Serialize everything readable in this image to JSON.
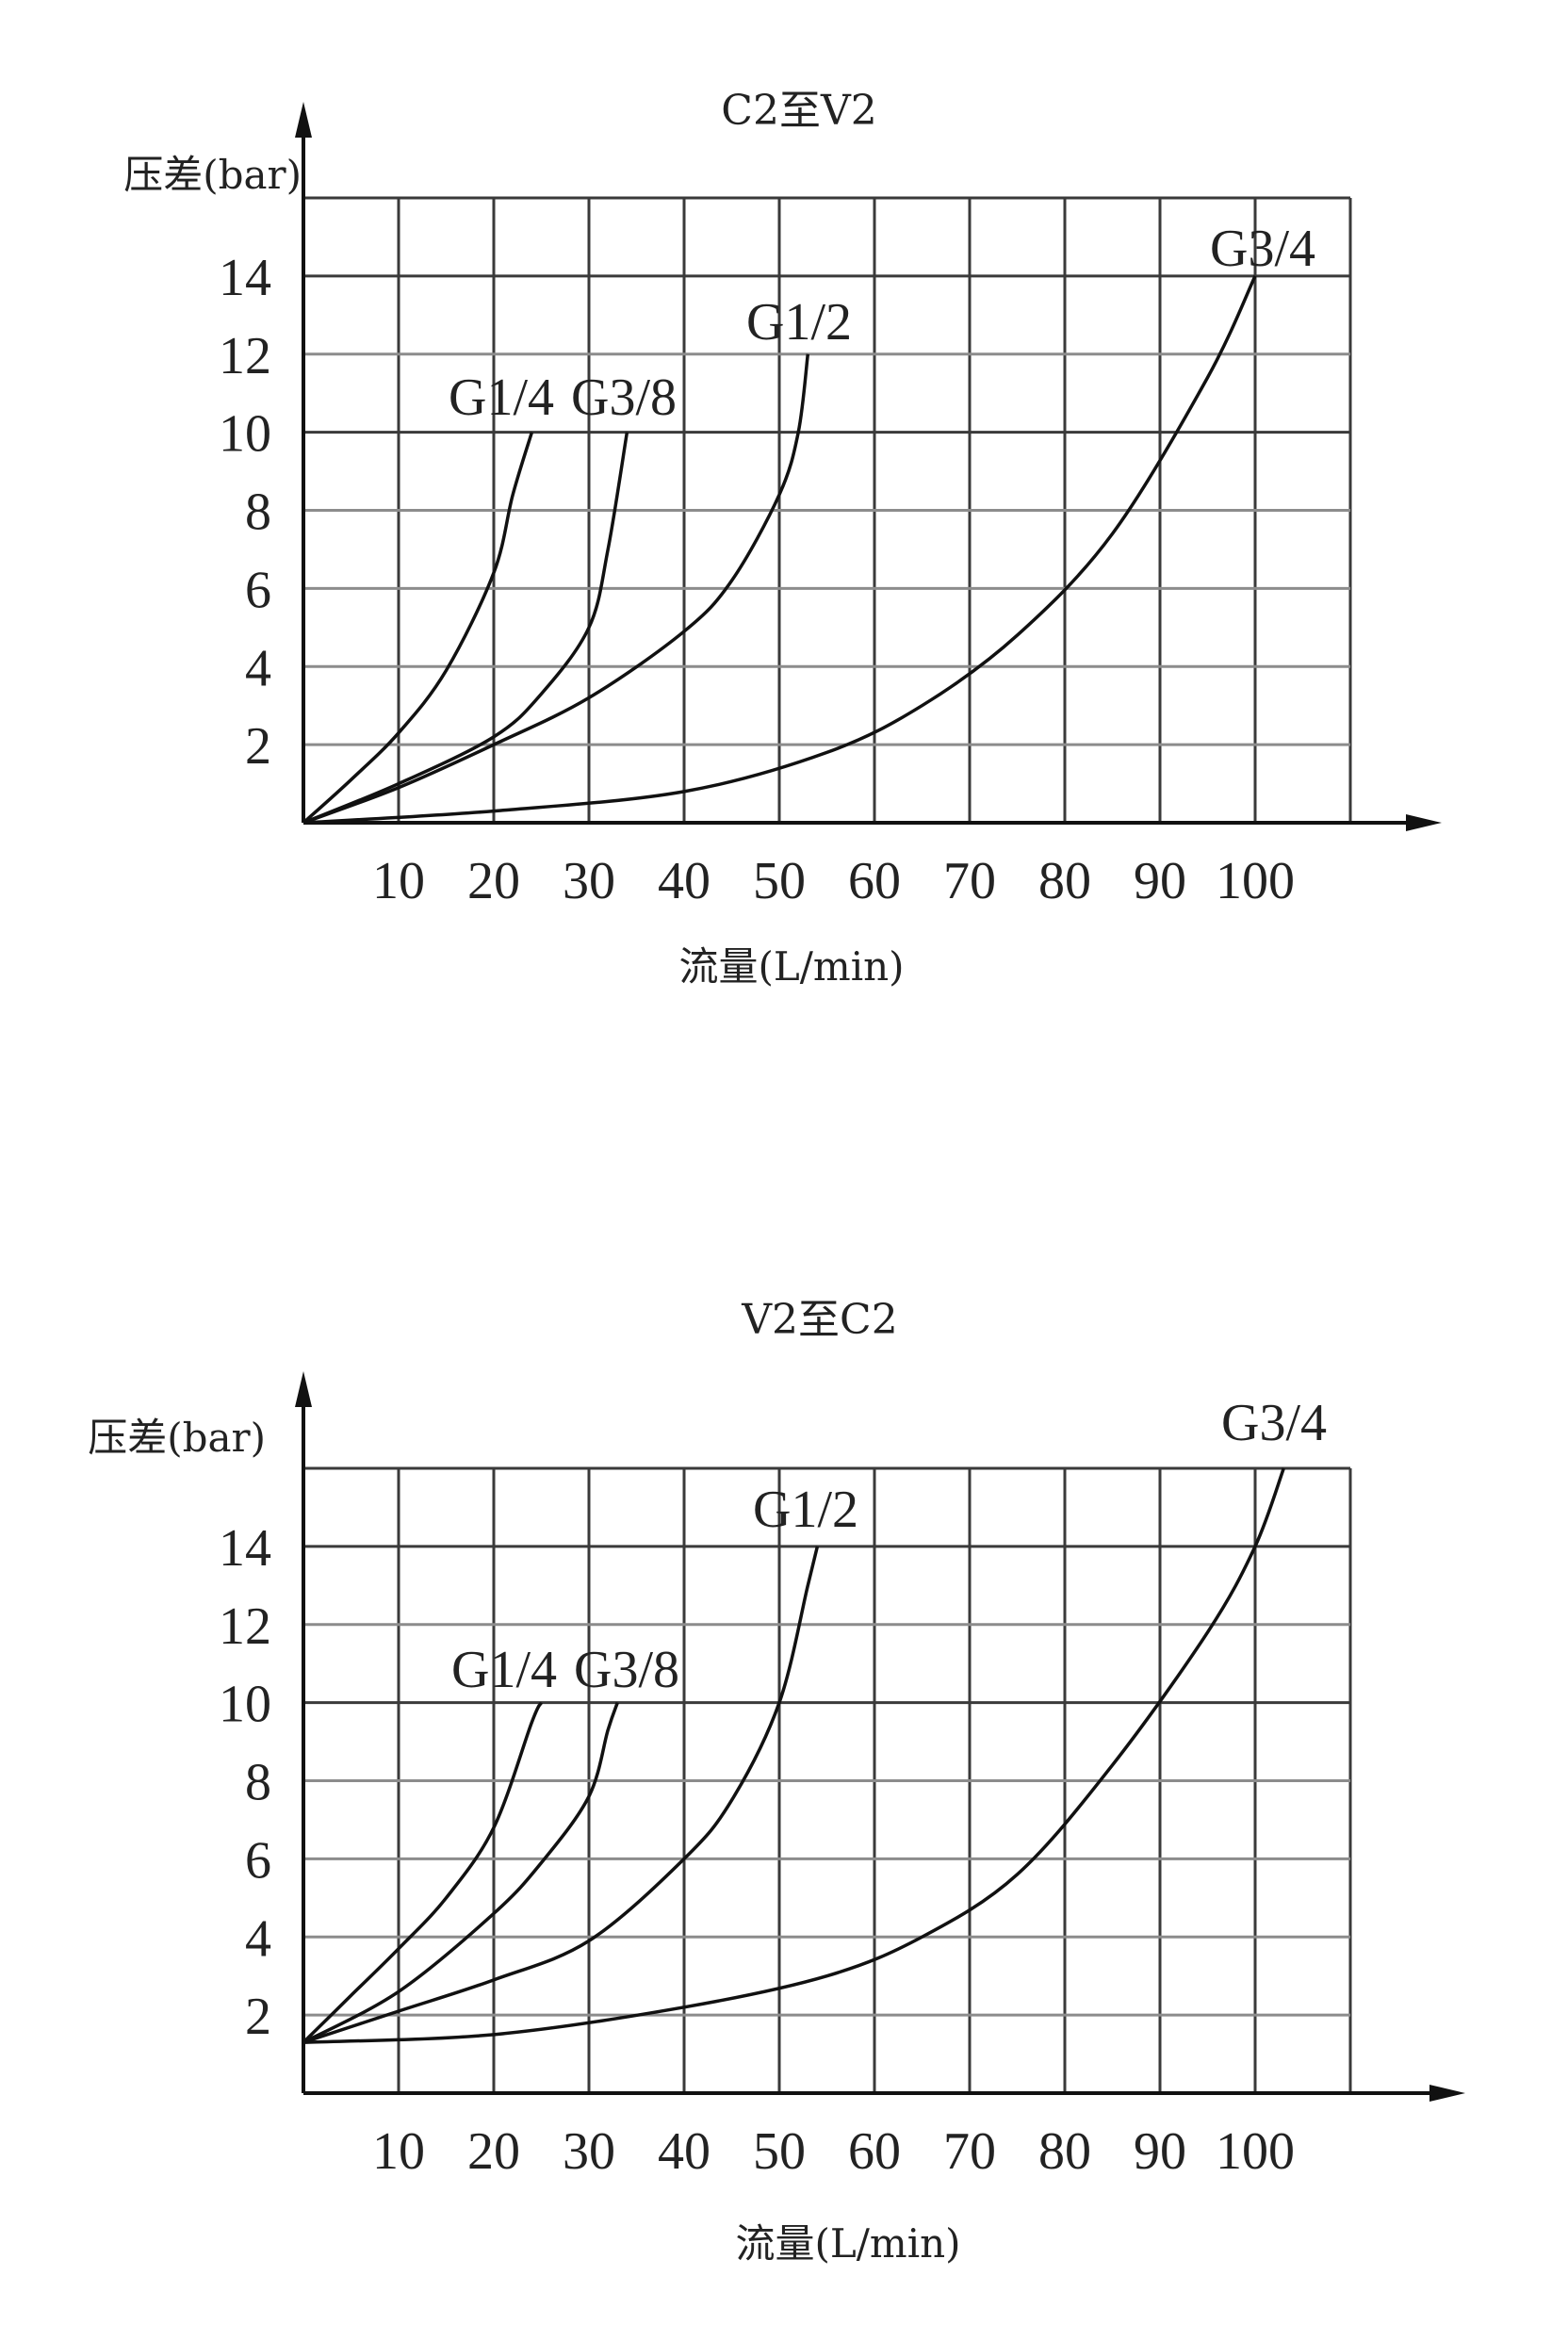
{
  "chart_data": [
    {
      "type": "line",
      "title": "C2至V2",
      "xlabel": "流量(L/min)",
      "ylabel": "压差(bar)",
      "xlim": [
        0,
        110
      ],
      "ylim": [
        0,
        16
      ],
      "x_ticks": [
        10,
        20,
        30,
        40,
        50,
        60,
        70,
        80,
        90,
        100
      ],
      "y_ticks": [
        2,
        4,
        6,
        8,
        10,
        12,
        14
      ],
      "grid": true,
      "series": [
        {
          "name": "G1/4",
          "x": [
            0,
            5,
            10,
            15,
            20,
            22,
            24
          ],
          "y": [
            0,
            1.1,
            2.3,
            3.9,
            6.4,
            8.4,
            10
          ]
        },
        {
          "name": "G3/8",
          "x": [
            0,
            10,
            20,
            25,
            30,
            32,
            34
          ],
          "y": [
            0,
            1.0,
            2.2,
            3.3,
            5.0,
            7.0,
            10
          ]
        },
        {
          "name": "G1/2",
          "x": [
            0,
            10,
            20,
            30,
            40,
            45,
            50,
            52,
            53
          ],
          "y": [
            0,
            0.9,
            2.0,
            3.2,
            4.9,
            6.2,
            8.4,
            10,
            12
          ]
        },
        {
          "name": "G3/4",
          "x": [
            0,
            20,
            40,
            55,
            65,
            75,
            85,
            95,
            100
          ],
          "y": [
            0,
            0.3,
            0.8,
            1.8,
            3.0,
            4.8,
            7.4,
            11.4,
            14
          ]
        }
      ]
    },
    {
      "type": "line",
      "title": "V2至C2",
      "xlabel": "流量(L/min)",
      "ylabel": "压差(bar)",
      "xlim": [
        0,
        110
      ],
      "ylim": [
        0,
        16
      ],
      "x_ticks": [
        10,
        20,
        30,
        40,
        50,
        60,
        70,
        80,
        90,
        100
      ],
      "y_ticks": [
        2,
        4,
        6,
        8,
        10,
        12,
        14
      ],
      "grid": true,
      "series": [
        {
          "name": "G1/4",
          "x": [
            0,
            5,
            10,
            15,
            20,
            24,
            25
          ],
          "y": [
            1.3,
            2.5,
            3.7,
            5.0,
            6.8,
            9.5,
            10
          ]
        },
        {
          "name": "G3/8",
          "x": [
            0,
            10,
            20,
            25,
            30,
            32,
            33
          ],
          "y": [
            1.3,
            2.6,
            4.6,
            5.9,
            7.6,
            9.3,
            10
          ]
        },
        {
          "name": "G1/2",
          "x": [
            0,
            10,
            20,
            30,
            40,
            45,
            50,
            53,
            54
          ],
          "y": [
            1.3,
            2.1,
            2.9,
            3.9,
            6.0,
            7.5,
            10,
            13,
            14
          ]
        },
        {
          "name": "G3/4",
          "x": [
            0,
            20,
            40,
            55,
            65,
            75,
            85,
            95,
            100,
            103
          ],
          "y": [
            1.3,
            1.5,
            2.2,
            3.0,
            4.0,
            5.6,
            8.4,
            11.8,
            14,
            16
          ]
        }
      ]
    }
  ]
}
